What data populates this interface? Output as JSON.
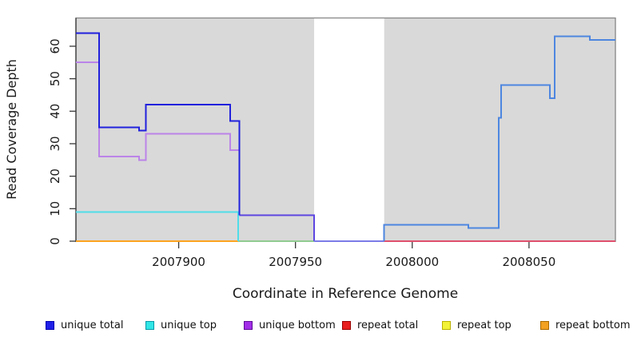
{
  "figure": {
    "x_axis_label": "Coordinate in Reference Genome",
    "y_axis_label": "Read Coverage Depth",
    "plot_background": "#d9d9d9",
    "page_background": "#ffffff"
  },
  "chart_data": {
    "type": "line",
    "subtype": "step",
    "title": "",
    "xlabel": "Coordinate in Reference Genome",
    "ylabel": "Read Coverage Depth",
    "xlim": [
      2007856,
      2008087
    ],
    "ylim": [
      0,
      68.7
    ],
    "x_ticks": [
      2007900,
      2007950,
      2008000,
      2008050
    ],
    "y_ticks": [
      0,
      10,
      20,
      30,
      40,
      50,
      60
    ],
    "grid": false,
    "legend_position": "bottom",
    "plot_bg": "#d9d9d9",
    "masked_region": {
      "x_start": 2007958,
      "x_end": 2007988,
      "color": "#ffffff"
    },
    "series": [
      {
        "name": "repeat-bottom-at-zero",
        "color": "#ffa321",
        "points": [
          [
            2007856,
            0
          ],
          [
            2007925.5,
            0
          ]
        ]
      },
      {
        "name": "unique-top-at-zero-blend",
        "color": "#8fcc90",
        "points": [
          [
            2007925.5,
            0
          ],
          [
            2007958,
            0
          ]
        ]
      },
      {
        "name": "repeat-total-at-zero",
        "color": "#e0506e",
        "points": [
          [
            2007988,
            0
          ],
          [
            2008087,
            0
          ]
        ]
      },
      {
        "name": "unique-top",
        "color": "#50dde8",
        "points": [
          [
            2007856,
            9
          ],
          [
            2007925.5,
            9
          ],
          [
            2007925.5,
            0
          ]
        ]
      },
      {
        "name": "unique-bottom",
        "color": "#bb84e8",
        "points": [
          [
            2007856,
            55
          ],
          [
            2007866,
            55
          ],
          [
            2007866,
            26
          ],
          [
            2007883,
            26
          ],
          [
            2007883,
            25
          ],
          [
            2007886,
            25
          ],
          [
            2007886,
            33
          ],
          [
            2007922,
            33
          ],
          [
            2007922,
            28
          ],
          [
            2007926,
            28
          ],
          [
            2007926,
            8
          ]
        ]
      },
      {
        "name": "unique-total-mid",
        "color": "#5c46e0",
        "points": [
          [
            2007926,
            8
          ],
          [
            2007958,
            8
          ],
          [
            2007958,
            0
          ]
        ]
      },
      {
        "name": "unique-total-gap",
        "color": "#7b7be8",
        "points": [
          [
            2007958,
            0
          ],
          [
            2007988,
            0
          ]
        ]
      },
      {
        "name": "unique-total-left",
        "color": "#2121dd",
        "points": [
          [
            2007856,
            64
          ],
          [
            2007866,
            64
          ],
          [
            2007866,
            35
          ],
          [
            2007883,
            35
          ],
          [
            2007883,
            34
          ],
          [
            2007886,
            34
          ],
          [
            2007886,
            42
          ],
          [
            2007922,
            42
          ],
          [
            2007922,
            37
          ],
          [
            2007926,
            37
          ],
          [
            2007926,
            8
          ]
        ]
      },
      {
        "name": "unique-total-right",
        "color": "#4d86e0",
        "points": [
          [
            2007988,
            0
          ],
          [
            2007988,
            5
          ],
          [
            2008024,
            5
          ],
          [
            2008024,
            4
          ],
          [
            2008037,
            4
          ],
          [
            2008037,
            38
          ],
          [
            2008038,
            38
          ],
          [
            2008038,
            48
          ],
          [
            2008059,
            48
          ],
          [
            2008059,
            44
          ],
          [
            2008061,
            44
          ],
          [
            2008061,
            63
          ],
          [
            2008076,
            63
          ],
          [
            2008076,
            62
          ],
          [
            2008087,
            62
          ]
        ]
      }
    ]
  },
  "legend": {
    "items": [
      {
        "label": "unique total",
        "fill": "#1f1fe8",
        "border": "#0000b0"
      },
      {
        "label": "unique top",
        "fill": "#30e6e6",
        "border": "#0898a8"
      },
      {
        "label": "unique bottom",
        "fill": "#a32ee8",
        "border": "#5e0d96"
      },
      {
        "label": "repeat total",
        "fill": "#e81f1f",
        "border": "#990000"
      },
      {
        "label": "repeat top",
        "fill": "#f2f238",
        "border": "#b8b000"
      },
      {
        "label": "repeat bottom",
        "fill": "#f2a122",
        "border": "#a86a00"
      }
    ]
  }
}
